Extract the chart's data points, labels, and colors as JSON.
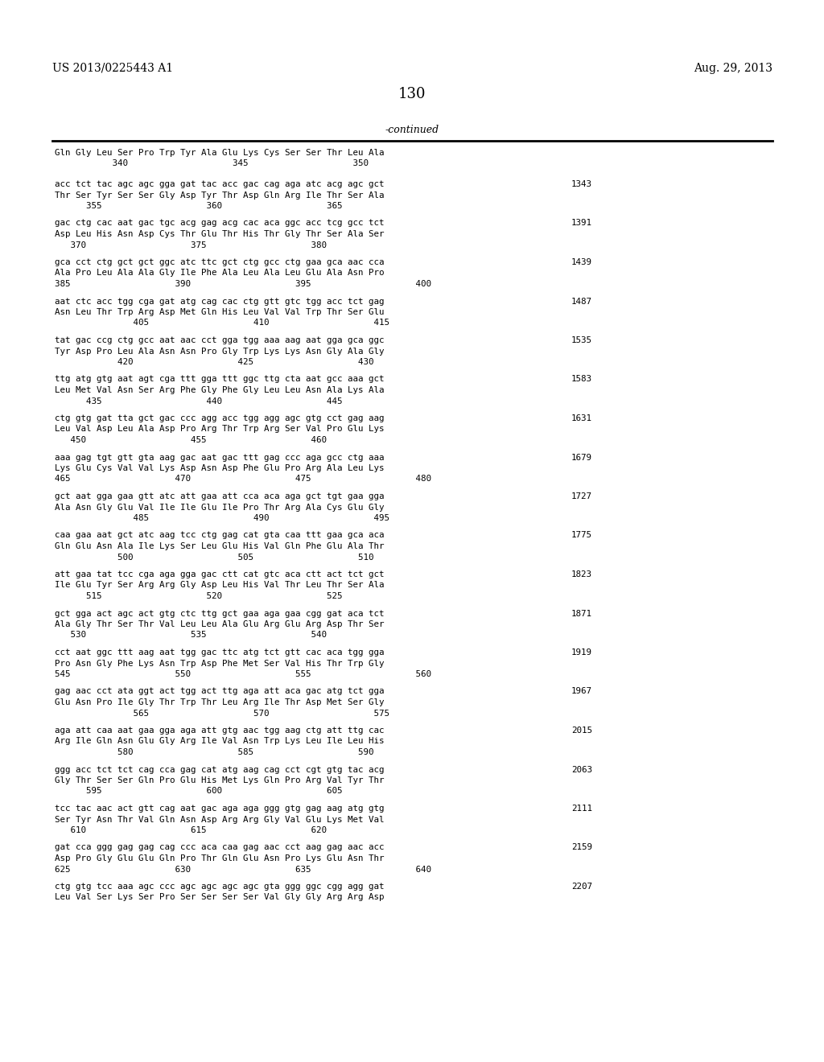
{
  "bg_color": "#ffffff",
  "header_left": "US 2013/0225443 A1",
  "header_right": "Aug. 29, 2013",
  "page_number": "130",
  "continued_label": "-continued",
  "sequence_blocks": [
    {
      "dna": "",
      "aa": "Gln Gly Leu Ser Pro Trp Tyr Ala Glu Lys Cys Ser Ser Thr Leu Ala",
      "nums": "           340                    345                    350",
      "has_nums": true,
      "index": null
    },
    {
      "dna": "acc tct tac agc agc gga gat tac acc gac cag aga atc acg agc gct",
      "aa": "Thr Ser Tyr Ser Ser Gly Asp Tyr Thr Asp Gln Arg Ile Thr Ser Ala",
      "nums": "      355                    360                    365",
      "has_nums": true,
      "index": "1343"
    },
    {
      "dna": "gac ctg cac aat gac tgc acg gag acg cac aca ggc acc tcg gcc tct",
      "aa": "Asp Leu His Asn Asp Cys Thr Glu Thr His Thr Gly Thr Ser Ala Ser",
      "nums": "   370                    375                    380",
      "has_nums": true,
      "index": "1391"
    },
    {
      "dna": "gca cct ctg gct gct ggc atc ttc gct ctg gcc ctg gaa gca aac cca",
      "aa": "Ala Pro Leu Ala Ala Gly Ile Phe Ala Leu Ala Leu Glu Ala Asn Pro",
      "nums": "385                    390                    395                    400",
      "has_nums": true,
      "index": "1439"
    },
    {
      "dna": "aat ctc acc tgg cga gat atg cag cac ctg gtt gtc tgg acc tct gag",
      "aa": "Asn Leu Thr Trp Arg Asp Met Gln His Leu Val Val Trp Thr Ser Glu",
      "nums": "               405                    410                    415",
      "has_nums": true,
      "index": "1487"
    },
    {
      "dna": "tat gac ccg ctg gcc aat aac cct gga tgg aaa aag aat gga gca ggc",
      "aa": "Tyr Asp Pro Leu Ala Asn Asn Pro Gly Trp Lys Lys Asn Gly Ala Gly",
      "nums": "            420                    425                    430",
      "has_nums": true,
      "index": "1535"
    },
    {
      "dna": "ttg atg gtg aat agt cga ttt gga ttt ggc ttg cta aat gcc aaa gct",
      "aa": "Leu Met Val Asn Ser Arg Phe Gly Phe Gly Leu Leu Asn Ala Lys Ala",
      "nums": "      435                    440                    445",
      "has_nums": true,
      "index": "1583"
    },
    {
      "dna": "ctg gtg gat tta gct gac ccc agg acc tgg agg agc gtg cct gag aag",
      "aa": "Leu Val Asp Leu Ala Asp Pro Arg Thr Trp Arg Ser Val Pro Glu Lys",
      "nums": "   450                    455                    460",
      "has_nums": true,
      "index": "1631"
    },
    {
      "dna": "aaa gag tgt gtt gta aag gac aat gac ttt gag ccc aga gcc ctg aaa",
      "aa": "Lys Glu Cys Val Val Lys Asp Asn Asp Phe Glu Pro Arg Ala Leu Lys",
      "nums": "465                    470                    475                    480",
      "has_nums": true,
      "index": "1679"
    },
    {
      "dna": "gct aat gga gaa gtt atc att gaa att cca aca aga gct tgt gaa gga",
      "aa": "Ala Asn Gly Glu Val Ile Ile Glu Ile Pro Thr Arg Ala Cys Glu Gly",
      "nums": "               485                    490                    495",
      "has_nums": true,
      "index": "1727"
    },
    {
      "dna": "caa gaa aat gct atc aag tcc ctg gag cat gta caa ttt gaa gca aca",
      "aa": "Gln Glu Asn Ala Ile Lys Ser Leu Glu His Val Gln Phe Glu Ala Thr",
      "nums": "            500                    505                    510",
      "has_nums": true,
      "index": "1775"
    },
    {
      "dna": "att gaa tat tcc cga aga gga gac ctt cat gtc aca ctt act tct gct",
      "aa": "Ile Glu Tyr Ser Arg Arg Gly Asp Leu His Val Thr Leu Thr Ser Ala",
      "nums": "      515                    520                    525",
      "has_nums": true,
      "index": "1823"
    },
    {
      "dna": "gct gga act agc act gtg ctc ttg gct gaa aga gaa cgg gat aca tct",
      "aa": "Ala Gly Thr Ser Thr Val Leu Leu Ala Glu Arg Glu Arg Asp Thr Ser",
      "nums": "   530                    535                    540",
      "has_nums": true,
      "index": "1871"
    },
    {
      "dna": "cct aat ggc ttt aag aat tgg gac ttc atg tct gtt cac aca tgg gga",
      "aa": "Pro Asn Gly Phe Lys Asn Trp Asp Phe Met Ser Val His Thr Trp Gly",
      "nums": "545                    550                    555                    560",
      "has_nums": true,
      "index": "1919"
    },
    {
      "dna": "gag aac cct ata ggt act tgg act ttg aga att aca gac atg tct gga",
      "aa": "Glu Asn Pro Ile Gly Thr Trp Thr Leu Arg Ile Thr Asp Met Ser Gly",
      "nums": "               565                    570                    575",
      "has_nums": true,
      "index": "1967"
    },
    {
      "dna": "aga att caa aat gaa gga aga att gtg aac tgg aag ctg att ttg cac",
      "aa": "Arg Ile Gln Asn Glu Gly Arg Ile Val Asn Trp Lys Leu Ile Leu His",
      "nums": "            580                    585                    590",
      "has_nums": true,
      "index": "2015"
    },
    {
      "dna": "ggg acc tct tct cag cca gag cat atg aag cag cct cgt gtg tac acg",
      "aa": "Gly Thr Ser Ser Gln Pro Glu His Met Lys Gln Pro Arg Val Tyr Thr",
      "nums": "      595                    600                    605",
      "has_nums": true,
      "index": "2063"
    },
    {
      "dna": "tcc tac aac act gtt cag aat gac aga aga ggg gtg gag aag atg gtg",
      "aa": "Ser Tyr Asn Thr Val Gln Asn Asp Arg Arg Gly Val Glu Lys Met Val",
      "nums": "   610                    615                    620",
      "has_nums": true,
      "index": "2111"
    },
    {
      "dna": "gat cca ggg gag gag cag ccc aca caa gag aac cct aag gag aac acc",
      "aa": "Asp Pro Gly Glu Glu Gln Pro Thr Gln Glu Asn Pro Lys Glu Asn Thr",
      "nums": "625                    630                    635                    640",
      "has_nums": true,
      "index": "2159"
    },
    {
      "dna": "ctg gtg tcc aaa agc ccc agc agc agc agc gta ggg ggc cgg agg gat",
      "aa": "Leu Val Ser Lys Ser Pro Ser Ser Ser Ser Val Gly Gly Arg Arg Asp",
      "nums": "",
      "has_nums": false,
      "index": "2207"
    }
  ]
}
